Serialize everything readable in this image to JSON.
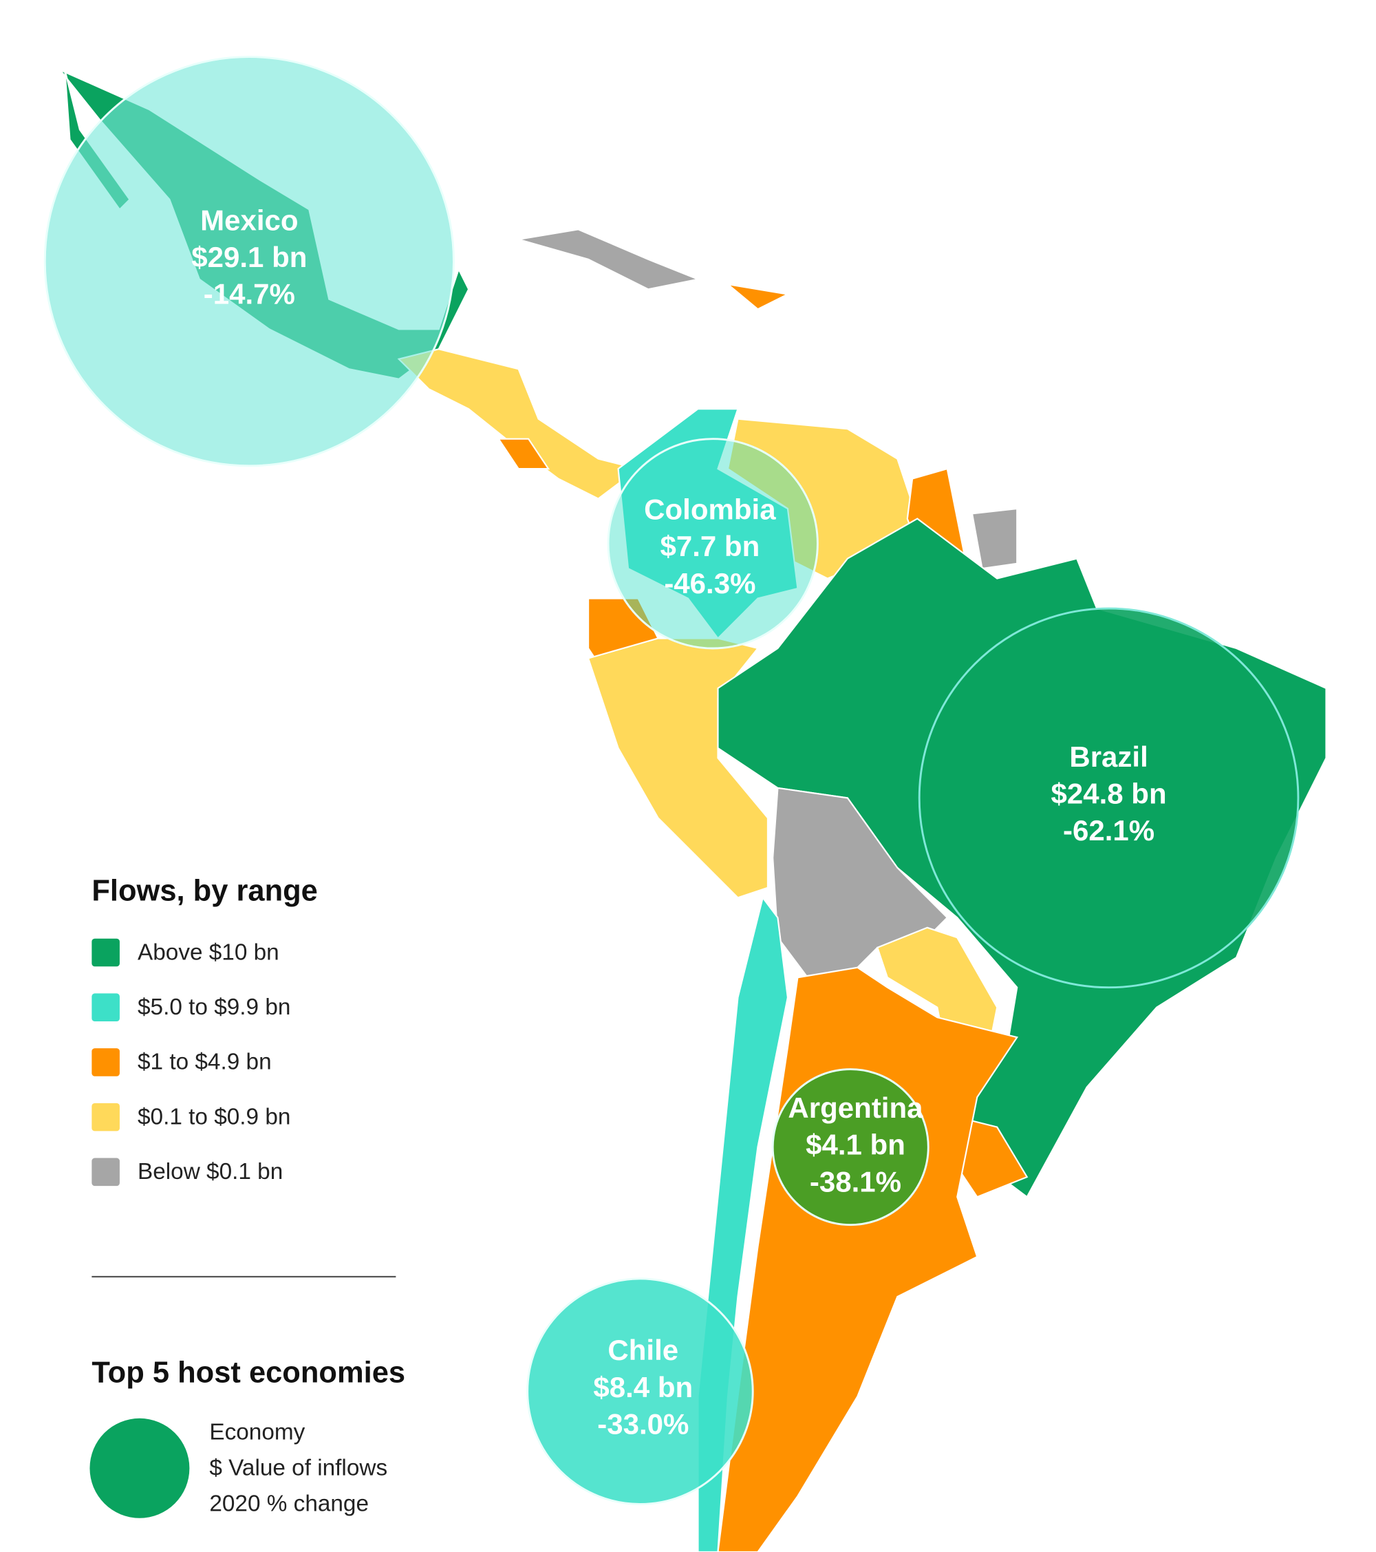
{
  "legend": {
    "title": "Flows, by range",
    "items": [
      {
        "label": "Above $10 bn",
        "color": "#0aa35f"
      },
      {
        "label": "$5.0 to $9.9 bn",
        "color": "#3de0c8"
      },
      {
        "label": "$1 to $4.9 bn",
        "color": "#ff9100"
      },
      {
        "label": "$0.1 to $0.9 bn",
        "color": "#ffd95a"
      },
      {
        "label": "Below $0.1 bn",
        "color": "#a6a6a6"
      }
    ]
  },
  "top_hosts": {
    "title": "Top 5 host economies",
    "key": [
      "Economy",
      "$ Value of inflows",
      "2020 % change"
    ]
  },
  "economies": [
    {
      "name": "Mexico",
      "value": "$29.1 bn",
      "change": "-14.7%"
    },
    {
      "name": "Colombia",
      "value": "$7.7 bn",
      "change": "-46.3%"
    },
    {
      "name": "Brazil",
      "value": "$24.8 bn",
      "change": "-62.1%"
    },
    {
      "name": "Argentina",
      "value": "$4.1 bn",
      "change": "-38.1%"
    },
    {
      "name": "Chile",
      "value": "$8.4 bn",
      "change": "-33.0%"
    }
  ]
}
